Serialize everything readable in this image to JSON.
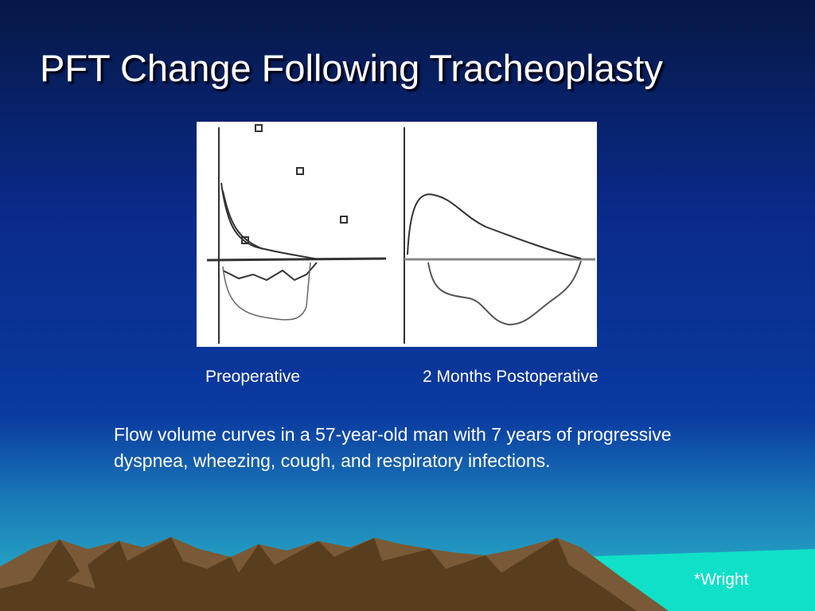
{
  "title": "PFT Change Following Tracheoplasty",
  "figure": {
    "labels": [
      "Preoperative",
      "2 Months Postoperative"
    ]
  },
  "caption": "Flow volume curves in a 57-year-old man with 7 years of progressive dyspnea, wheezing, cough, and respiratory infections.",
  "credit": "*Wright"
}
